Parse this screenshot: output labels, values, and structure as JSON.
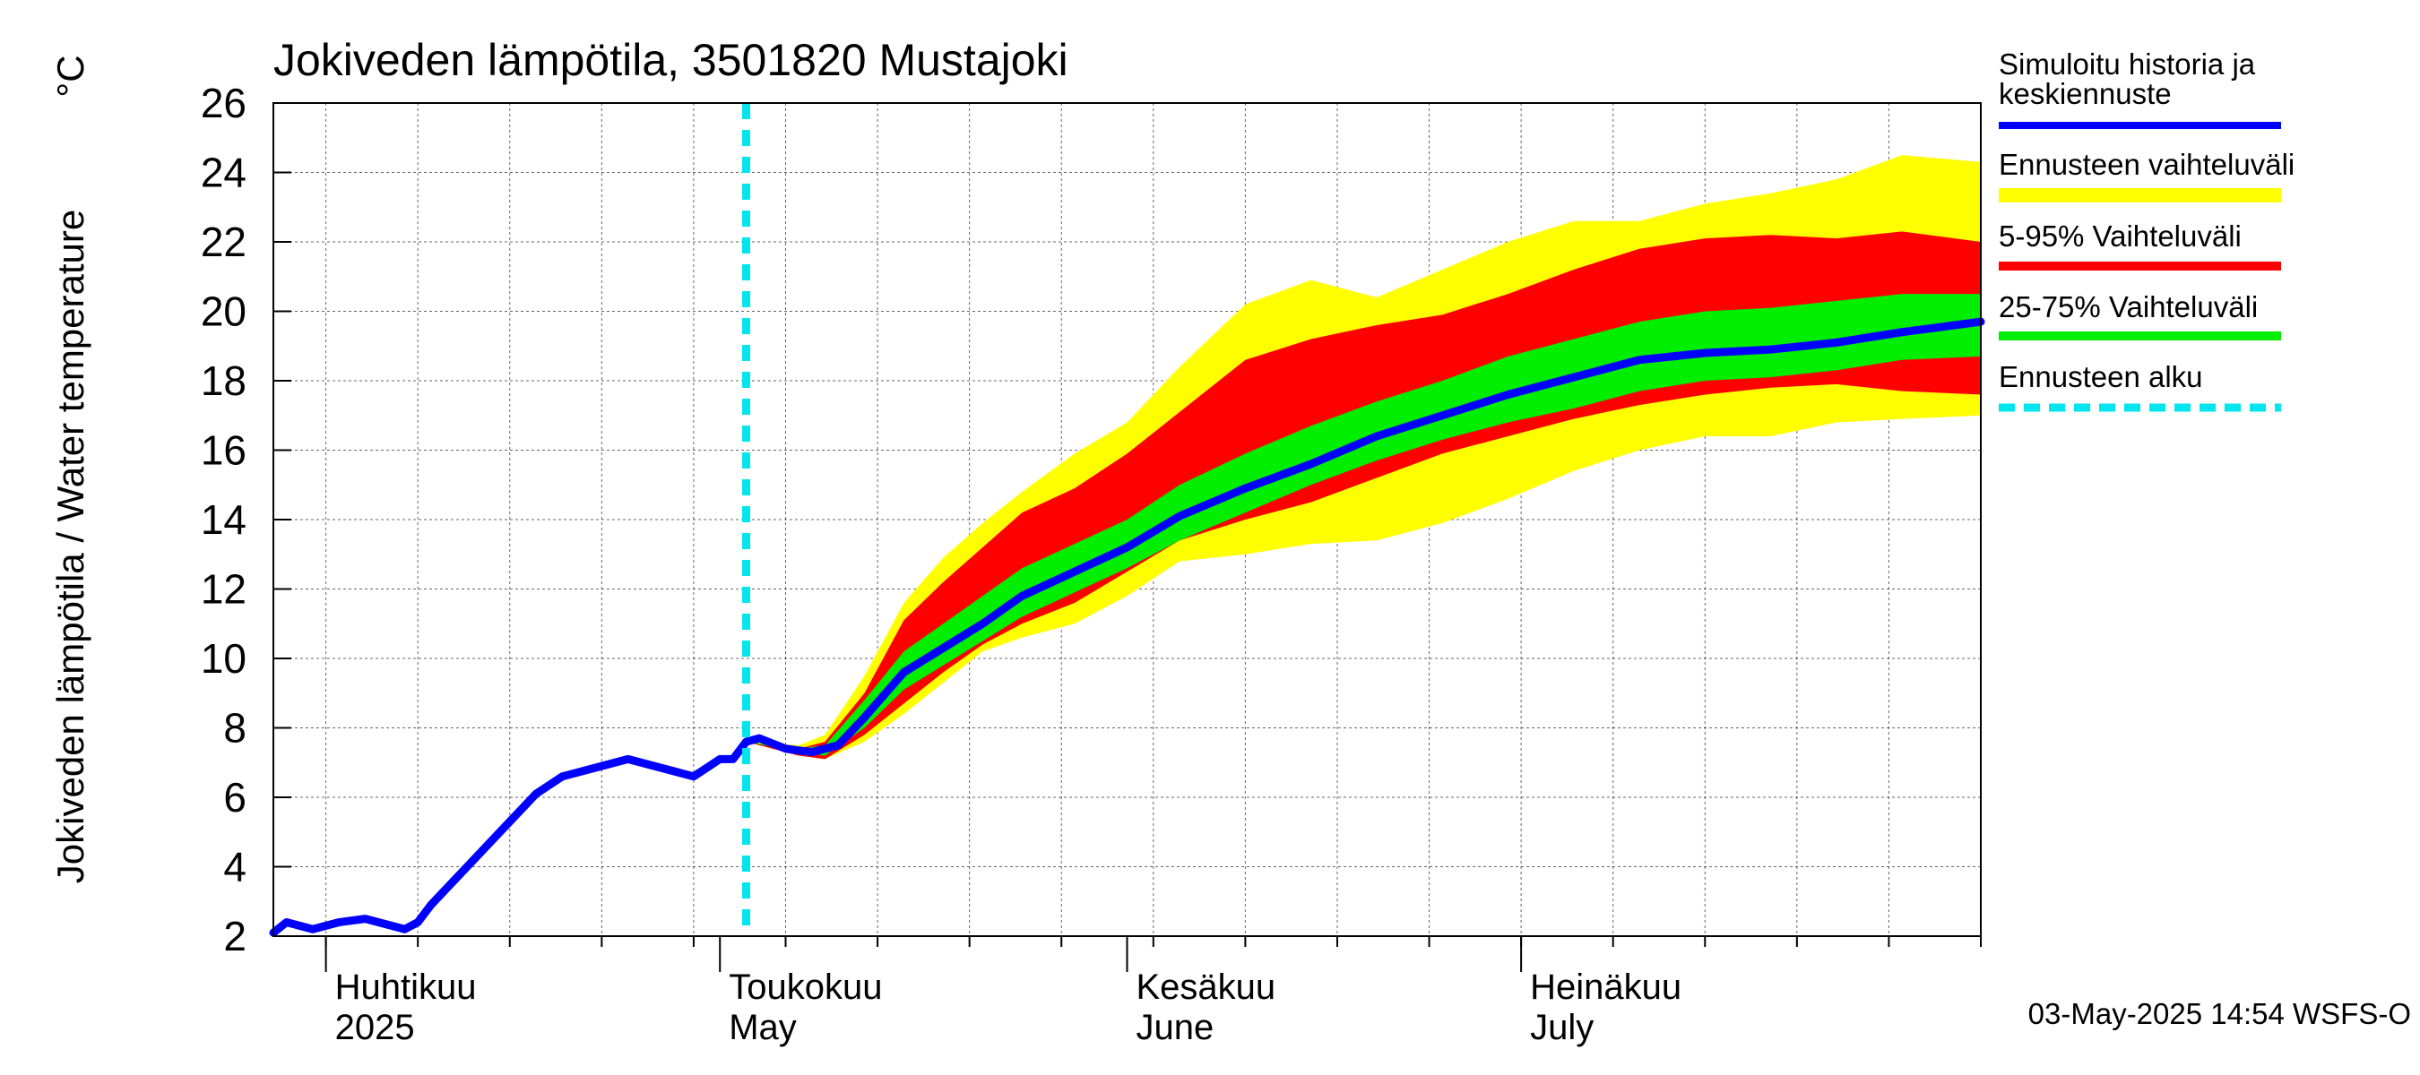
{
  "chart_data": {
    "type": "area",
    "title": "Jokiveden lämpötila, 3501820 Mustajoki",
    "ylabel": "Jokiveden lämpötila / Water temperature",
    "yunit": "°C",
    "ylim": [
      2,
      26
    ],
    "yticks": [
      2,
      4,
      6,
      8,
      10,
      12,
      14,
      16,
      18,
      20,
      22,
      24,
      26
    ],
    "xlim": [
      "2025-03-28",
      "2025-08-05"
    ],
    "grid": true,
    "legend_position": "right",
    "month_labels": [
      {
        "date": "2025-04-01",
        "fi": "Huhtikuu",
        "en": "2025"
      },
      {
        "date": "2025-05-01",
        "fi": "Toukokuu",
        "en": "May"
      },
      {
        "date": "2025-06-01",
        "fi": "Kesäkuu",
        "en": "June"
      },
      {
        "date": "2025-07-01",
        "fi": "Heinäkuu",
        "en": "July"
      }
    ],
    "forecast_start": "2025-05-03",
    "footer": "03-May-2025 14:54 WSFS-O",
    "legend": [
      {
        "key": "median",
        "label": "Simuloitu historia ja keskiennuste",
        "color": "#0000ff"
      },
      {
        "key": "range",
        "label": "Ennusteen vaihteluväli",
        "color": "#ffff00"
      },
      {
        "key": "p5_95",
        "label": "5-95% Vaihteluväli",
        "color": "#ff0000"
      },
      {
        "key": "p25_75",
        "label": "25-75% Vaihteluväli",
        "color": "#00ee00"
      },
      {
        "key": "start",
        "label": "Ennusteen alku",
        "color": "#00e5ee"
      }
    ],
    "series": [
      {
        "name": "Simuloitu historia ja keskiennuste",
        "points": [
          [
            "2025-03-28",
            2.1
          ],
          [
            "2025-03-29",
            2.4
          ],
          [
            "2025-03-31",
            2.2
          ],
          [
            "2025-04-02",
            2.4
          ],
          [
            "2025-04-04",
            2.5
          ],
          [
            "2025-04-06",
            2.3
          ],
          [
            "2025-04-07",
            2.2
          ],
          [
            "2025-04-08",
            2.4
          ],
          [
            "2025-04-09",
            2.9
          ],
          [
            "2025-04-11",
            3.7
          ],
          [
            "2025-04-13",
            4.5
          ],
          [
            "2025-04-15",
            5.3
          ],
          [
            "2025-04-17",
            6.1
          ],
          [
            "2025-04-19",
            6.6
          ],
          [
            "2025-04-21",
            6.8
          ],
          [
            "2025-04-23",
            7.0
          ],
          [
            "2025-04-24",
            7.1
          ],
          [
            "2025-04-26",
            6.9
          ],
          [
            "2025-04-28",
            6.7
          ],
          [
            "2025-04-29",
            6.6
          ],
          [
            "2025-05-01",
            7.1
          ],
          [
            "2025-05-02",
            7.1
          ],
          [
            "2025-05-03",
            7.6
          ],
          [
            "2025-05-04",
            7.7
          ],
          [
            "2025-05-06",
            7.4
          ],
          [
            "2025-05-08",
            7.3
          ],
          [
            "2025-05-10",
            7.5
          ],
          [
            "2025-05-12",
            8.3
          ],
          [
            "2025-05-15",
            9.6
          ],
          [
            "2025-05-18",
            10.3
          ],
          [
            "2025-05-21",
            11.0
          ],
          [
            "2025-05-24",
            11.8
          ],
          [
            "2025-05-28",
            12.5
          ],
          [
            "2025-06-01",
            13.2
          ],
          [
            "2025-06-05",
            14.1
          ],
          [
            "2025-06-10",
            14.9
          ],
          [
            "2025-06-15",
            15.6
          ],
          [
            "2025-06-20",
            16.4
          ],
          [
            "2025-06-25",
            17.0
          ],
          [
            "2025-06-30",
            17.6
          ],
          [
            "2025-07-05",
            18.1
          ],
          [
            "2025-07-10",
            18.6
          ],
          [
            "2025-07-15",
            18.8
          ],
          [
            "2025-07-20",
            18.9
          ],
          [
            "2025-07-25",
            19.1
          ],
          [
            "2025-07-30",
            19.4
          ],
          [
            "2025-08-05",
            19.7
          ]
        ]
      }
    ],
    "bands": [
      {
        "key": "range",
        "color": "#ffff00",
        "points": [
          [
            "2025-05-03",
            7.6,
            7.6
          ],
          [
            "2025-05-07",
            7.2,
            7.5
          ],
          [
            "2025-05-09",
            7.1,
            7.8
          ],
          [
            "2025-05-12",
            7.6,
            9.5
          ],
          [
            "2025-05-15",
            8.4,
            11.6
          ],
          [
            "2025-05-18",
            9.3,
            12.9
          ],
          [
            "2025-05-21",
            10.2,
            13.9
          ],
          [
            "2025-05-24",
            10.6,
            14.8
          ],
          [
            "2025-05-28",
            11.0,
            15.9
          ],
          [
            "2025-06-01",
            11.8,
            16.8
          ],
          [
            "2025-06-05",
            12.8,
            18.4
          ],
          [
            "2025-06-10",
            13.0,
            20.2
          ],
          [
            "2025-06-15",
            13.3,
            20.9
          ],
          [
            "2025-06-20",
            13.4,
            20.4
          ],
          [
            "2025-06-25",
            13.9,
            21.2
          ],
          [
            "2025-06-30",
            14.6,
            22.0
          ],
          [
            "2025-07-05",
            15.4,
            22.6
          ],
          [
            "2025-07-10",
            16.0,
            22.6
          ],
          [
            "2025-07-15",
            16.4,
            23.1
          ],
          [
            "2025-07-20",
            16.4,
            23.4
          ],
          [
            "2025-07-25",
            16.8,
            23.8
          ],
          [
            "2025-07-30",
            16.9,
            24.5
          ],
          [
            "2025-08-05",
            17.0,
            24.3
          ]
        ]
      },
      {
        "key": "p5_95",
        "color": "#ff0000",
        "points": [
          [
            "2025-05-03",
            7.6,
            7.6
          ],
          [
            "2025-05-07",
            7.2,
            7.4
          ],
          [
            "2025-05-09",
            7.1,
            7.6
          ],
          [
            "2025-05-12",
            7.8,
            9.0
          ],
          [
            "2025-05-15",
            8.7,
            11.1
          ],
          [
            "2025-05-18",
            9.6,
            12.2
          ],
          [
            "2025-05-21",
            10.4,
            13.2
          ],
          [
            "2025-05-24",
            11.0,
            14.2
          ],
          [
            "2025-05-28",
            11.6,
            14.9
          ],
          [
            "2025-06-01",
            12.5,
            15.9
          ],
          [
            "2025-06-05",
            13.4,
            17.1
          ],
          [
            "2025-06-10",
            14.0,
            18.6
          ],
          [
            "2025-06-15",
            14.5,
            19.2
          ],
          [
            "2025-06-20",
            15.2,
            19.6
          ],
          [
            "2025-06-25",
            15.9,
            19.9
          ],
          [
            "2025-06-30",
            16.4,
            20.5
          ],
          [
            "2025-07-05",
            16.9,
            21.2
          ],
          [
            "2025-07-10",
            17.3,
            21.8
          ],
          [
            "2025-07-15",
            17.6,
            22.1
          ],
          [
            "2025-07-20",
            17.8,
            22.2
          ],
          [
            "2025-07-25",
            17.9,
            22.1
          ],
          [
            "2025-07-30",
            17.7,
            22.3
          ],
          [
            "2025-08-05",
            17.6,
            22.0
          ]
        ]
      },
      {
        "key": "p25_75",
        "color": "#00ee00",
        "points": [
          [
            "2025-05-03",
            7.6,
            7.6
          ],
          [
            "2025-05-07",
            7.3,
            7.4
          ],
          [
            "2025-05-09",
            7.2,
            7.5
          ],
          [
            "2025-05-12",
            8.0,
            8.8
          ],
          [
            "2025-05-15",
            9.1,
            10.2
          ],
          [
            "2025-05-18",
            9.8,
            11.0
          ],
          [
            "2025-05-21",
            10.5,
            11.8
          ],
          [
            "2025-05-24",
            11.2,
            12.6
          ],
          [
            "2025-05-28",
            11.9,
            13.3
          ],
          [
            "2025-06-01",
            12.6,
            14.0
          ],
          [
            "2025-06-05",
            13.4,
            15.0
          ],
          [
            "2025-06-10",
            14.2,
            15.9
          ],
          [
            "2025-06-15",
            15.0,
            16.7
          ],
          [
            "2025-06-20",
            15.7,
            17.4
          ],
          [
            "2025-06-25",
            16.3,
            18.0
          ],
          [
            "2025-06-30",
            16.8,
            18.7
          ],
          [
            "2025-07-05",
            17.2,
            19.2
          ],
          [
            "2025-07-10",
            17.7,
            19.7
          ],
          [
            "2025-07-15",
            18.0,
            20.0
          ],
          [
            "2025-07-20",
            18.1,
            20.1
          ],
          [
            "2025-07-25",
            18.3,
            20.3
          ],
          [
            "2025-07-30",
            18.6,
            20.5
          ],
          [
            "2025-08-05",
            18.7,
            20.5
          ]
        ]
      }
    ]
  }
}
